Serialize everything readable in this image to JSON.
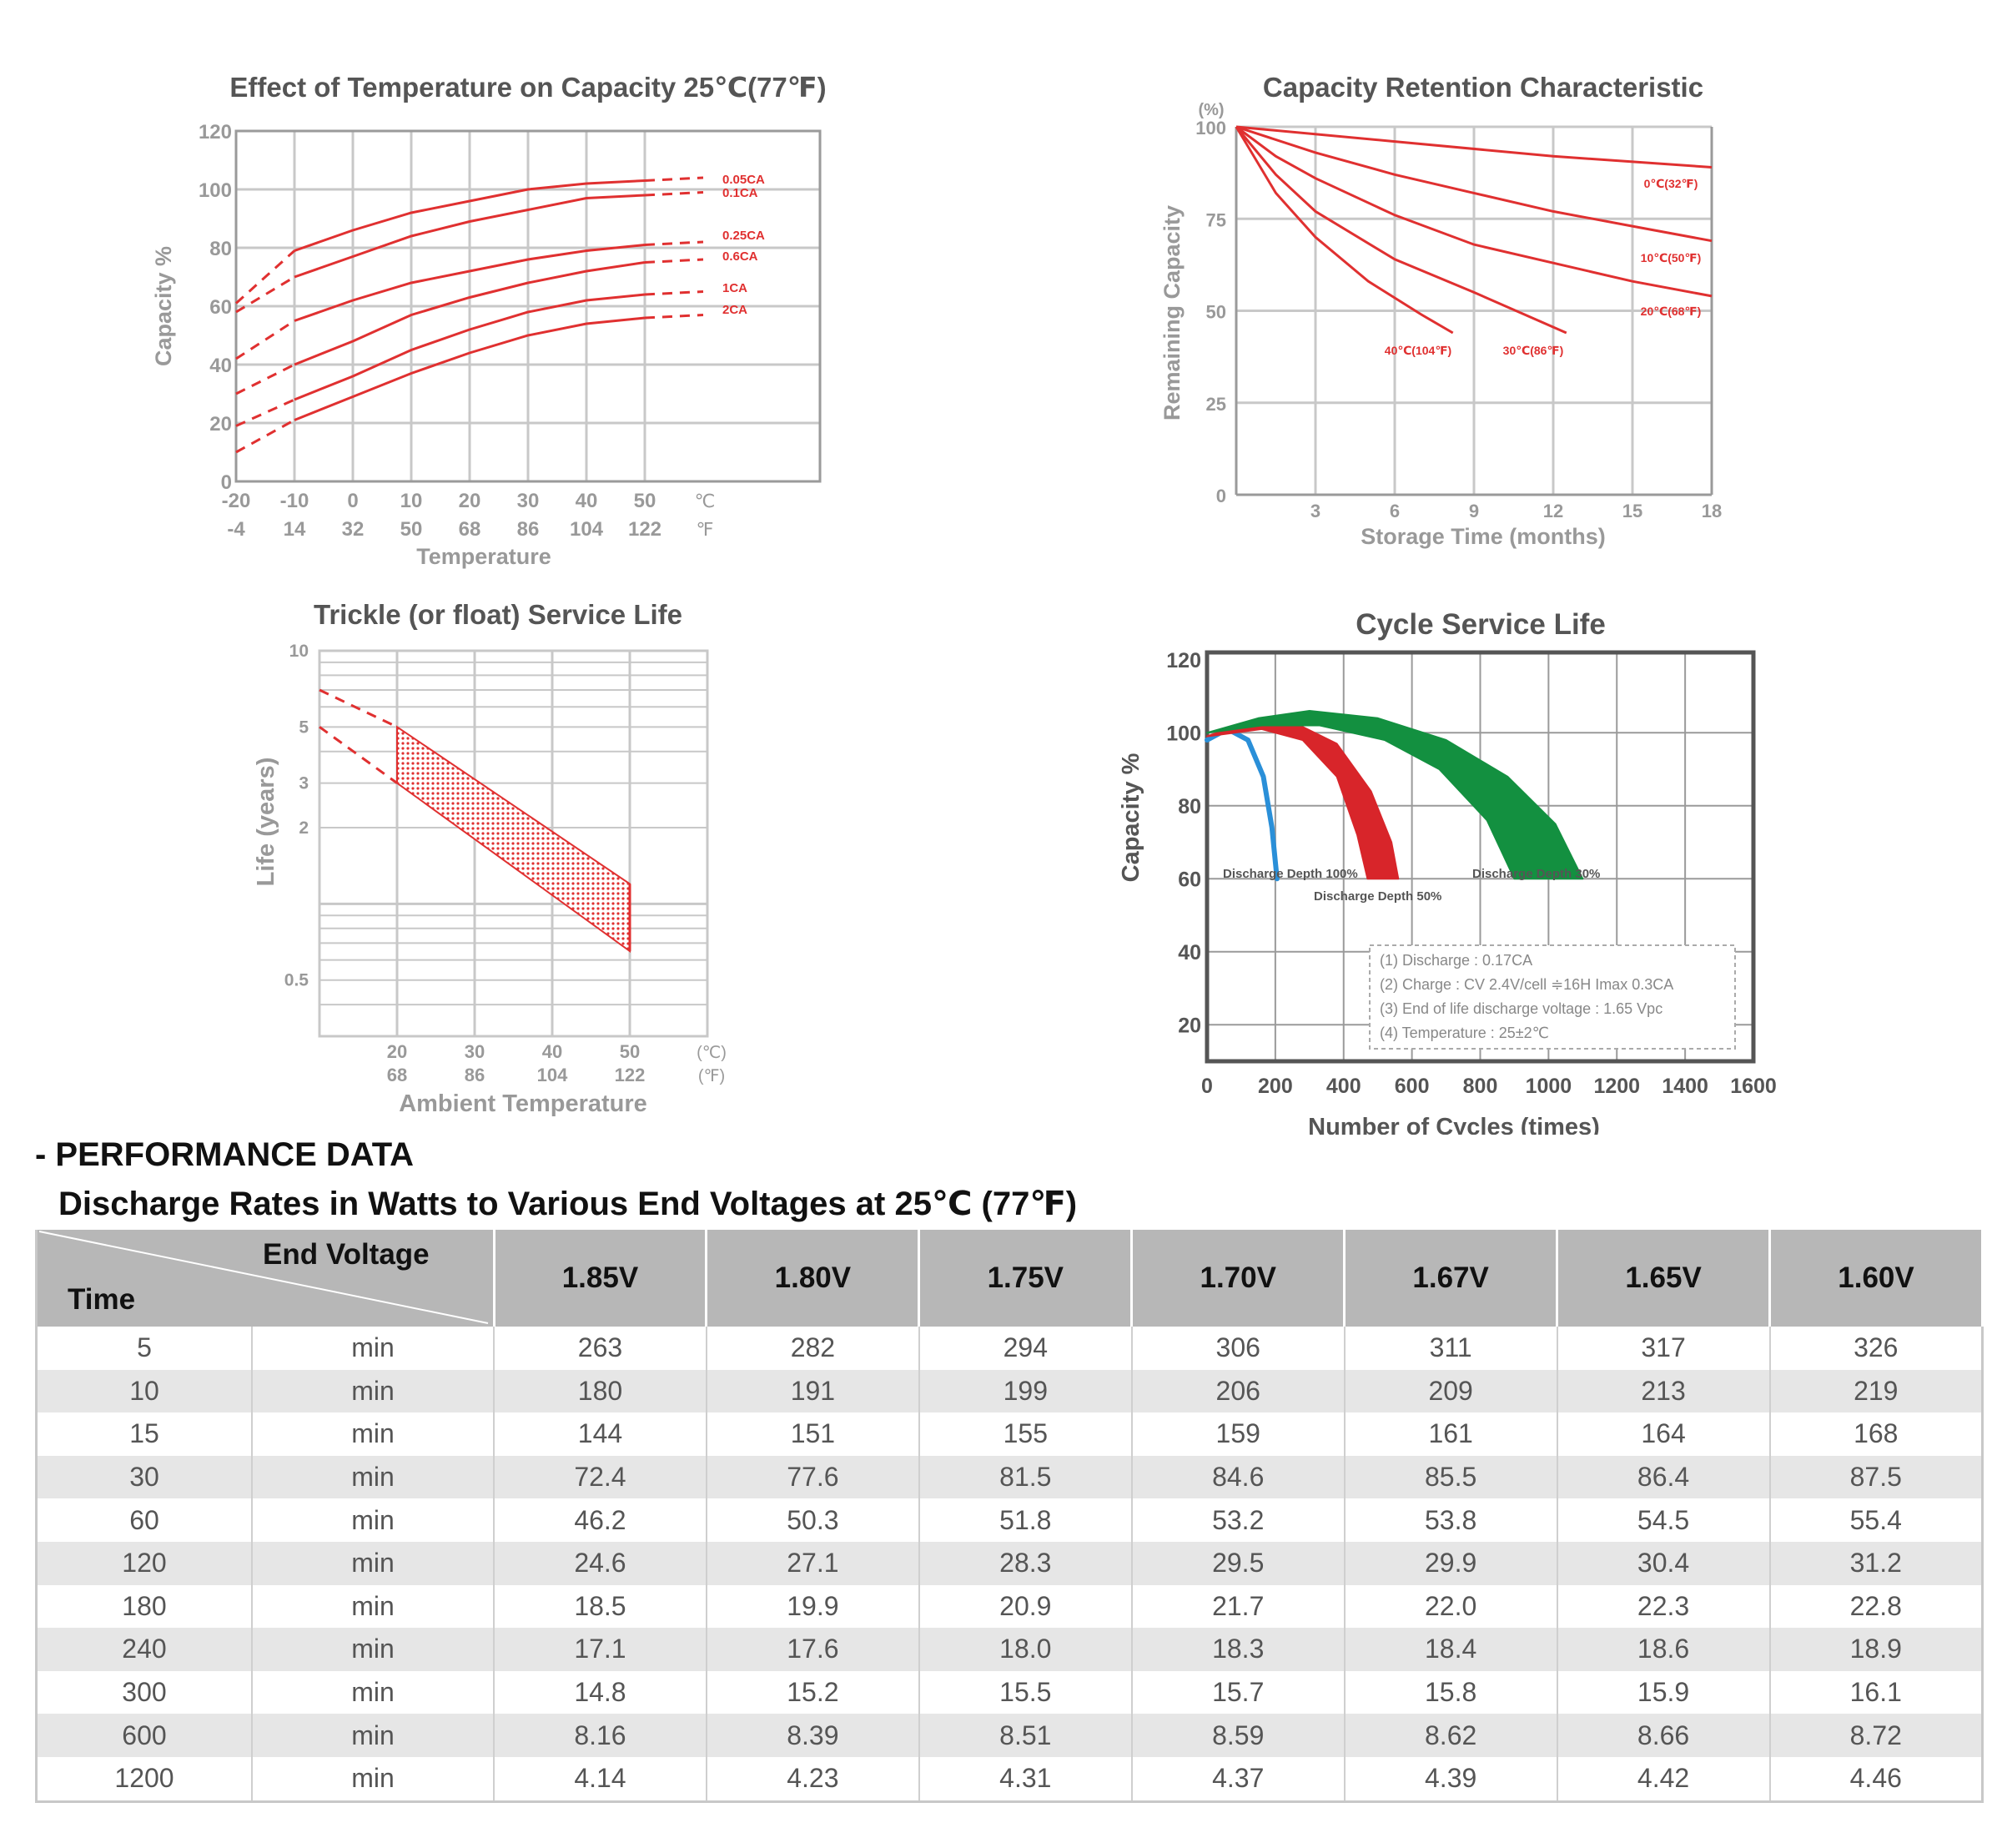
{
  "colors": {
    "red": "#e03030",
    "blue": "#2a8fd8",
    "darkred": "#d8252a",
    "green": "#139040",
    "grid": "#c8c8c8",
    "axis": "#9a9a9a"
  },
  "chart_data": [
    {
      "type": "line",
      "title": "Effect of Temperature on Capacity  25℃(77℉)",
      "xlabel": "Temperature",
      "ylabel": "Capacity %",
      "x_ticks_c": [
        "-20",
        "-10",
        "0",
        "10",
        "20",
        "30",
        "40",
        "50"
      ],
      "x_ticks_f": [
        "-4",
        "14",
        "32",
        "50",
        "68",
        "86",
        "104",
        "122"
      ],
      "x_unit_c": "℃",
      "x_unit_f": "℉",
      "y_ticks": [
        "0",
        "20",
        "40",
        "60",
        "80",
        "100",
        "120"
      ],
      "xlim": [
        -20,
        80
      ],
      "ylim": [
        0,
        120
      ],
      "series": [
        {
          "name": "0.05CA",
          "dashed": [
            [
              -20,
              61
            ],
            [
              -10,
              79
            ]
          ],
          "solid": [
            [
              -10,
              79
            ],
            [
              0,
              86
            ],
            [
              10,
              92
            ],
            [
              20,
              96
            ],
            [
              30,
              100
            ],
            [
              40,
              102
            ],
            [
              50,
              103
            ]
          ],
          "tail": [
            [
              50,
              103
            ],
            [
              60,
              104
            ]
          ]
        },
        {
          "name": "0.1CA",
          "dashed": [
            [
              -20,
              58
            ],
            [
              -10,
              70
            ]
          ],
          "solid": [
            [
              -10,
              70
            ],
            [
              0,
              77
            ],
            [
              10,
              84
            ],
            [
              20,
              89
            ],
            [
              30,
              93
            ],
            [
              40,
              97
            ],
            [
              50,
              98
            ]
          ],
          "tail": [
            [
              50,
              98
            ],
            [
              60,
              99
            ]
          ]
        },
        {
          "name": "0.25CA",
          "dashed": [
            [
              -20,
              42
            ],
            [
              -10,
              55
            ]
          ],
          "solid": [
            [
              -10,
              55
            ],
            [
              0,
              62
            ],
            [
              10,
              68
            ],
            [
              20,
              72
            ],
            [
              30,
              76
            ],
            [
              40,
              79
            ],
            [
              50,
              81
            ]
          ],
          "tail": [
            [
              50,
              81
            ],
            [
              60,
              82
            ]
          ]
        },
        {
          "name": "0.6CA",
          "dashed": [
            [
              -20,
              30
            ],
            [
              -10,
              40
            ]
          ],
          "solid": [
            [
              -10,
              40
            ],
            [
              0,
              48
            ],
            [
              10,
              57
            ],
            [
              20,
              63
            ],
            [
              30,
              68
            ],
            [
              40,
              72
            ],
            [
              50,
              75
            ]
          ],
          "tail": [
            [
              50,
              75
            ],
            [
              60,
              76
            ]
          ]
        },
        {
          "name": "1CA",
          "dashed": [
            [
              -20,
              19
            ],
            [
              -10,
              28
            ]
          ],
          "solid": [
            [
              -10,
              28
            ],
            [
              0,
              36
            ],
            [
              10,
              45
            ],
            [
              20,
              52
            ],
            [
              30,
              58
            ],
            [
              40,
              62
            ],
            [
              50,
              64
            ]
          ],
          "tail": [
            [
              50,
              64
            ],
            [
              60,
              65
            ]
          ]
        },
        {
          "name": "2CA",
          "dashed": [
            [
              -20,
              10
            ],
            [
              -10,
              21
            ]
          ],
          "solid": [
            [
              -10,
              21
            ],
            [
              0,
              29
            ],
            [
              10,
              37
            ],
            [
              20,
              44
            ],
            [
              30,
              50
            ],
            [
              40,
              54
            ],
            [
              50,
              56
            ]
          ],
          "tail": [
            [
              50,
              56
            ],
            [
              60,
              57
            ]
          ]
        }
      ]
    },
    {
      "type": "line",
      "title": "Capacity Retention Characteristic",
      "xlabel": "Storage Time (months)",
      "ylabel": "Remaining Capacity",
      "y_unit": "(%)",
      "x_ticks": [
        "3",
        "6",
        "9",
        "12",
        "15",
        "18"
      ],
      "y_ticks": [
        "0",
        "25",
        "50",
        "75",
        "100"
      ],
      "xlim": [
        0,
        18
      ],
      "ylim": [
        0,
        100
      ],
      "series": [
        {
          "name": "0℃(32℉)",
          "points": [
            [
              0,
              100
            ],
            [
              6,
              96
            ],
            [
              12,
              92
            ],
            [
              18,
              89
            ]
          ]
        },
        {
          "name": "10℃(50℉)",
          "points": [
            [
              0,
              100
            ],
            [
              3,
              93
            ],
            [
              6,
              87
            ],
            [
              9,
              82
            ],
            [
              12,
              77
            ],
            [
              15,
              73
            ],
            [
              18,
              69
            ]
          ]
        },
        {
          "name": "20℃(68℉)",
          "points": [
            [
              0,
              100
            ],
            [
              1.5,
              92
            ],
            [
              3,
              86
            ],
            [
              6,
              76
            ],
            [
              9,
              68
            ],
            [
              12,
              63
            ],
            [
              15,
              58
            ],
            [
              18,
              54
            ]
          ]
        },
        {
          "name": "30℃(86℉)",
          "points": [
            [
              0,
              100
            ],
            [
              1.5,
              87
            ],
            [
              3,
              77
            ],
            [
              6,
              64
            ],
            [
              9,
              55
            ],
            [
              12.5,
              44
            ]
          ]
        },
        {
          "name": "40℃(104℉)",
          "points": [
            [
              0,
              100
            ],
            [
              1.5,
              82
            ],
            [
              3,
              70
            ],
            [
              5,
              58
            ],
            [
              7,
              49
            ],
            [
              8.2,
              44
            ]
          ]
        }
      ]
    },
    {
      "type": "area",
      "title": "Trickle (or float) Service Life",
      "xlabel": "Ambient Temperature",
      "ylabel": "Life (years)",
      "x_ticks_c": [
        "20",
        "30",
        "40",
        "50"
      ],
      "x_ticks_f": [
        "68",
        "86",
        "104",
        "122"
      ],
      "x_unit_c": "(℃)",
      "x_unit_f": "(℉)",
      "y_ticks": [
        "10",
        "5",
        "3",
        "2",
        "0.5"
      ],
      "xlim": [
        10,
        60
      ],
      "ylim_log": [
        0.3,
        10
      ],
      "upper_dashed": [
        [
          10,
          7.0
        ],
        [
          20,
          5.0
        ]
      ],
      "lower_dashed": [
        [
          10,
          5.0
        ],
        [
          20,
          3.0
        ]
      ],
      "band_upper": [
        [
          20,
          5.0
        ],
        [
          50,
          1.2
        ]
      ],
      "band_lower": [
        [
          20,
          3.0
        ],
        [
          50,
          0.65
        ]
      ]
    },
    {
      "type": "area",
      "title": "Cycle Service Life",
      "xlabel": "Number of Cycles (times)",
      "ylabel": "Capacity %",
      "x_ticks": [
        "0",
        "200",
        "400",
        "600",
        "800",
        "1000",
        "1200",
        "1400",
        "1600"
      ],
      "y_ticks": [
        "20",
        "40",
        "60",
        "80",
        "100",
        "120"
      ],
      "xlim": [
        0,
        1600
      ],
      "ylim": [
        10,
        122
      ],
      "series": [
        {
          "name": "Discharge Depth 100%",
          "color": "blue",
          "outer": [
            [
              0,
              98
            ],
            [
              60,
              101
            ],
            [
              120,
              98
            ],
            [
              165,
              88
            ],
            [
              190,
              74
            ],
            [
              205,
              60
            ]
          ],
          "inner": [
            [
              205,
              60
            ],
            [
              190,
              74
            ],
            [
              165,
              88
            ],
            [
              120,
              98
            ],
            [
              60,
              101
            ],
            [
              0,
              98
            ]
          ]
        },
        {
          "name": "Discharge Depth 50%",
          "color": "darkred",
          "outer": [
            [
              0,
              99
            ],
            [
              120,
              103
            ],
            [
              250,
              103
            ],
            [
              380,
              97
            ],
            [
              480,
              84
            ],
            [
              540,
              70
            ],
            [
              560,
              60
            ]
          ],
          "inner": [
            [
              470,
              60
            ],
            [
              440,
              72
            ],
            [
              380,
              88
            ],
            [
              280,
              98
            ],
            [
              160,
              101
            ],
            [
              0,
              99
            ]
          ]
        },
        {
          "name": "Discharge Depth 30%",
          "color": "green",
          "outer": [
            [
              0,
              100
            ],
            [
              150,
              104
            ],
            [
              300,
              106
            ],
            [
              500,
              104
            ],
            [
              700,
              98
            ],
            [
              880,
              88
            ],
            [
              1020,
              75
            ],
            [
              1100,
              60
            ]
          ],
          "inner": [
            [
              900,
              60
            ],
            [
              820,
              76
            ],
            [
              680,
              90
            ],
            [
              520,
              98
            ],
            [
              330,
              102
            ],
            [
              160,
              102
            ],
            [
              0,
              100
            ]
          ]
        }
      ],
      "notes": [
        "(1) Discharge : 0.17CA",
        "(2) Charge : CV 2.4V/cell ≑16H Imax 0.3CA",
        "(3) End of life discharge voltage : 1.65 Vpc",
        "(4) Temperature : 25±2℃"
      ]
    }
  ],
  "performance": {
    "heading": "- PERFORMANCE DATA",
    "subheading": "Discharge Rates in Watts to Various End Voltages at 25℃ (77℉)",
    "corner_end_voltage": "End Voltage",
    "corner_time": "Time",
    "voltages": [
      "1.85V",
      "1.80V",
      "1.75V",
      "1.70V",
      "1.67V",
      "1.65V",
      "1.60V"
    ],
    "rows": [
      {
        "time": "5",
        "unit": "min",
        "values": [
          "263",
          "282",
          "294",
          "306",
          "311",
          "317",
          "326"
        ]
      },
      {
        "time": "10",
        "unit": "min",
        "values": [
          "180",
          "191",
          "199",
          "206",
          "209",
          "213",
          "219"
        ]
      },
      {
        "time": "15",
        "unit": "min",
        "values": [
          "144",
          "151",
          "155",
          "159",
          "161",
          "164",
          "168"
        ]
      },
      {
        "time": "30",
        "unit": "min",
        "values": [
          "72.4",
          "77.6",
          "81.5",
          "84.6",
          "85.5",
          "86.4",
          "87.5"
        ]
      },
      {
        "time": "60",
        "unit": "min",
        "values": [
          "46.2",
          "50.3",
          "51.8",
          "53.2",
          "53.8",
          "54.5",
          "55.4"
        ]
      },
      {
        "time": "120",
        "unit": "min",
        "values": [
          "24.6",
          "27.1",
          "28.3",
          "29.5",
          "29.9",
          "30.4",
          "31.2"
        ]
      },
      {
        "time": "180",
        "unit": "min",
        "values": [
          "18.5",
          "19.9",
          "20.9",
          "21.7",
          "22.0",
          "22.3",
          "22.8"
        ]
      },
      {
        "time": "240",
        "unit": "min",
        "values": [
          "17.1",
          "17.6",
          "18.0",
          "18.3",
          "18.4",
          "18.6",
          "18.9"
        ]
      },
      {
        "time": "300",
        "unit": "min",
        "values": [
          "14.8",
          "15.2",
          "15.5",
          "15.7",
          "15.8",
          "15.9",
          "16.1"
        ]
      },
      {
        "time": "600",
        "unit": "min",
        "values": [
          "8.16",
          "8.39",
          "8.51",
          "8.59",
          "8.62",
          "8.66",
          "8.72"
        ]
      },
      {
        "time": "1200",
        "unit": "min",
        "values": [
          "4.14",
          "4.23",
          "4.31",
          "4.37",
          "4.39",
          "4.42",
          "4.46"
        ]
      }
    ]
  }
}
